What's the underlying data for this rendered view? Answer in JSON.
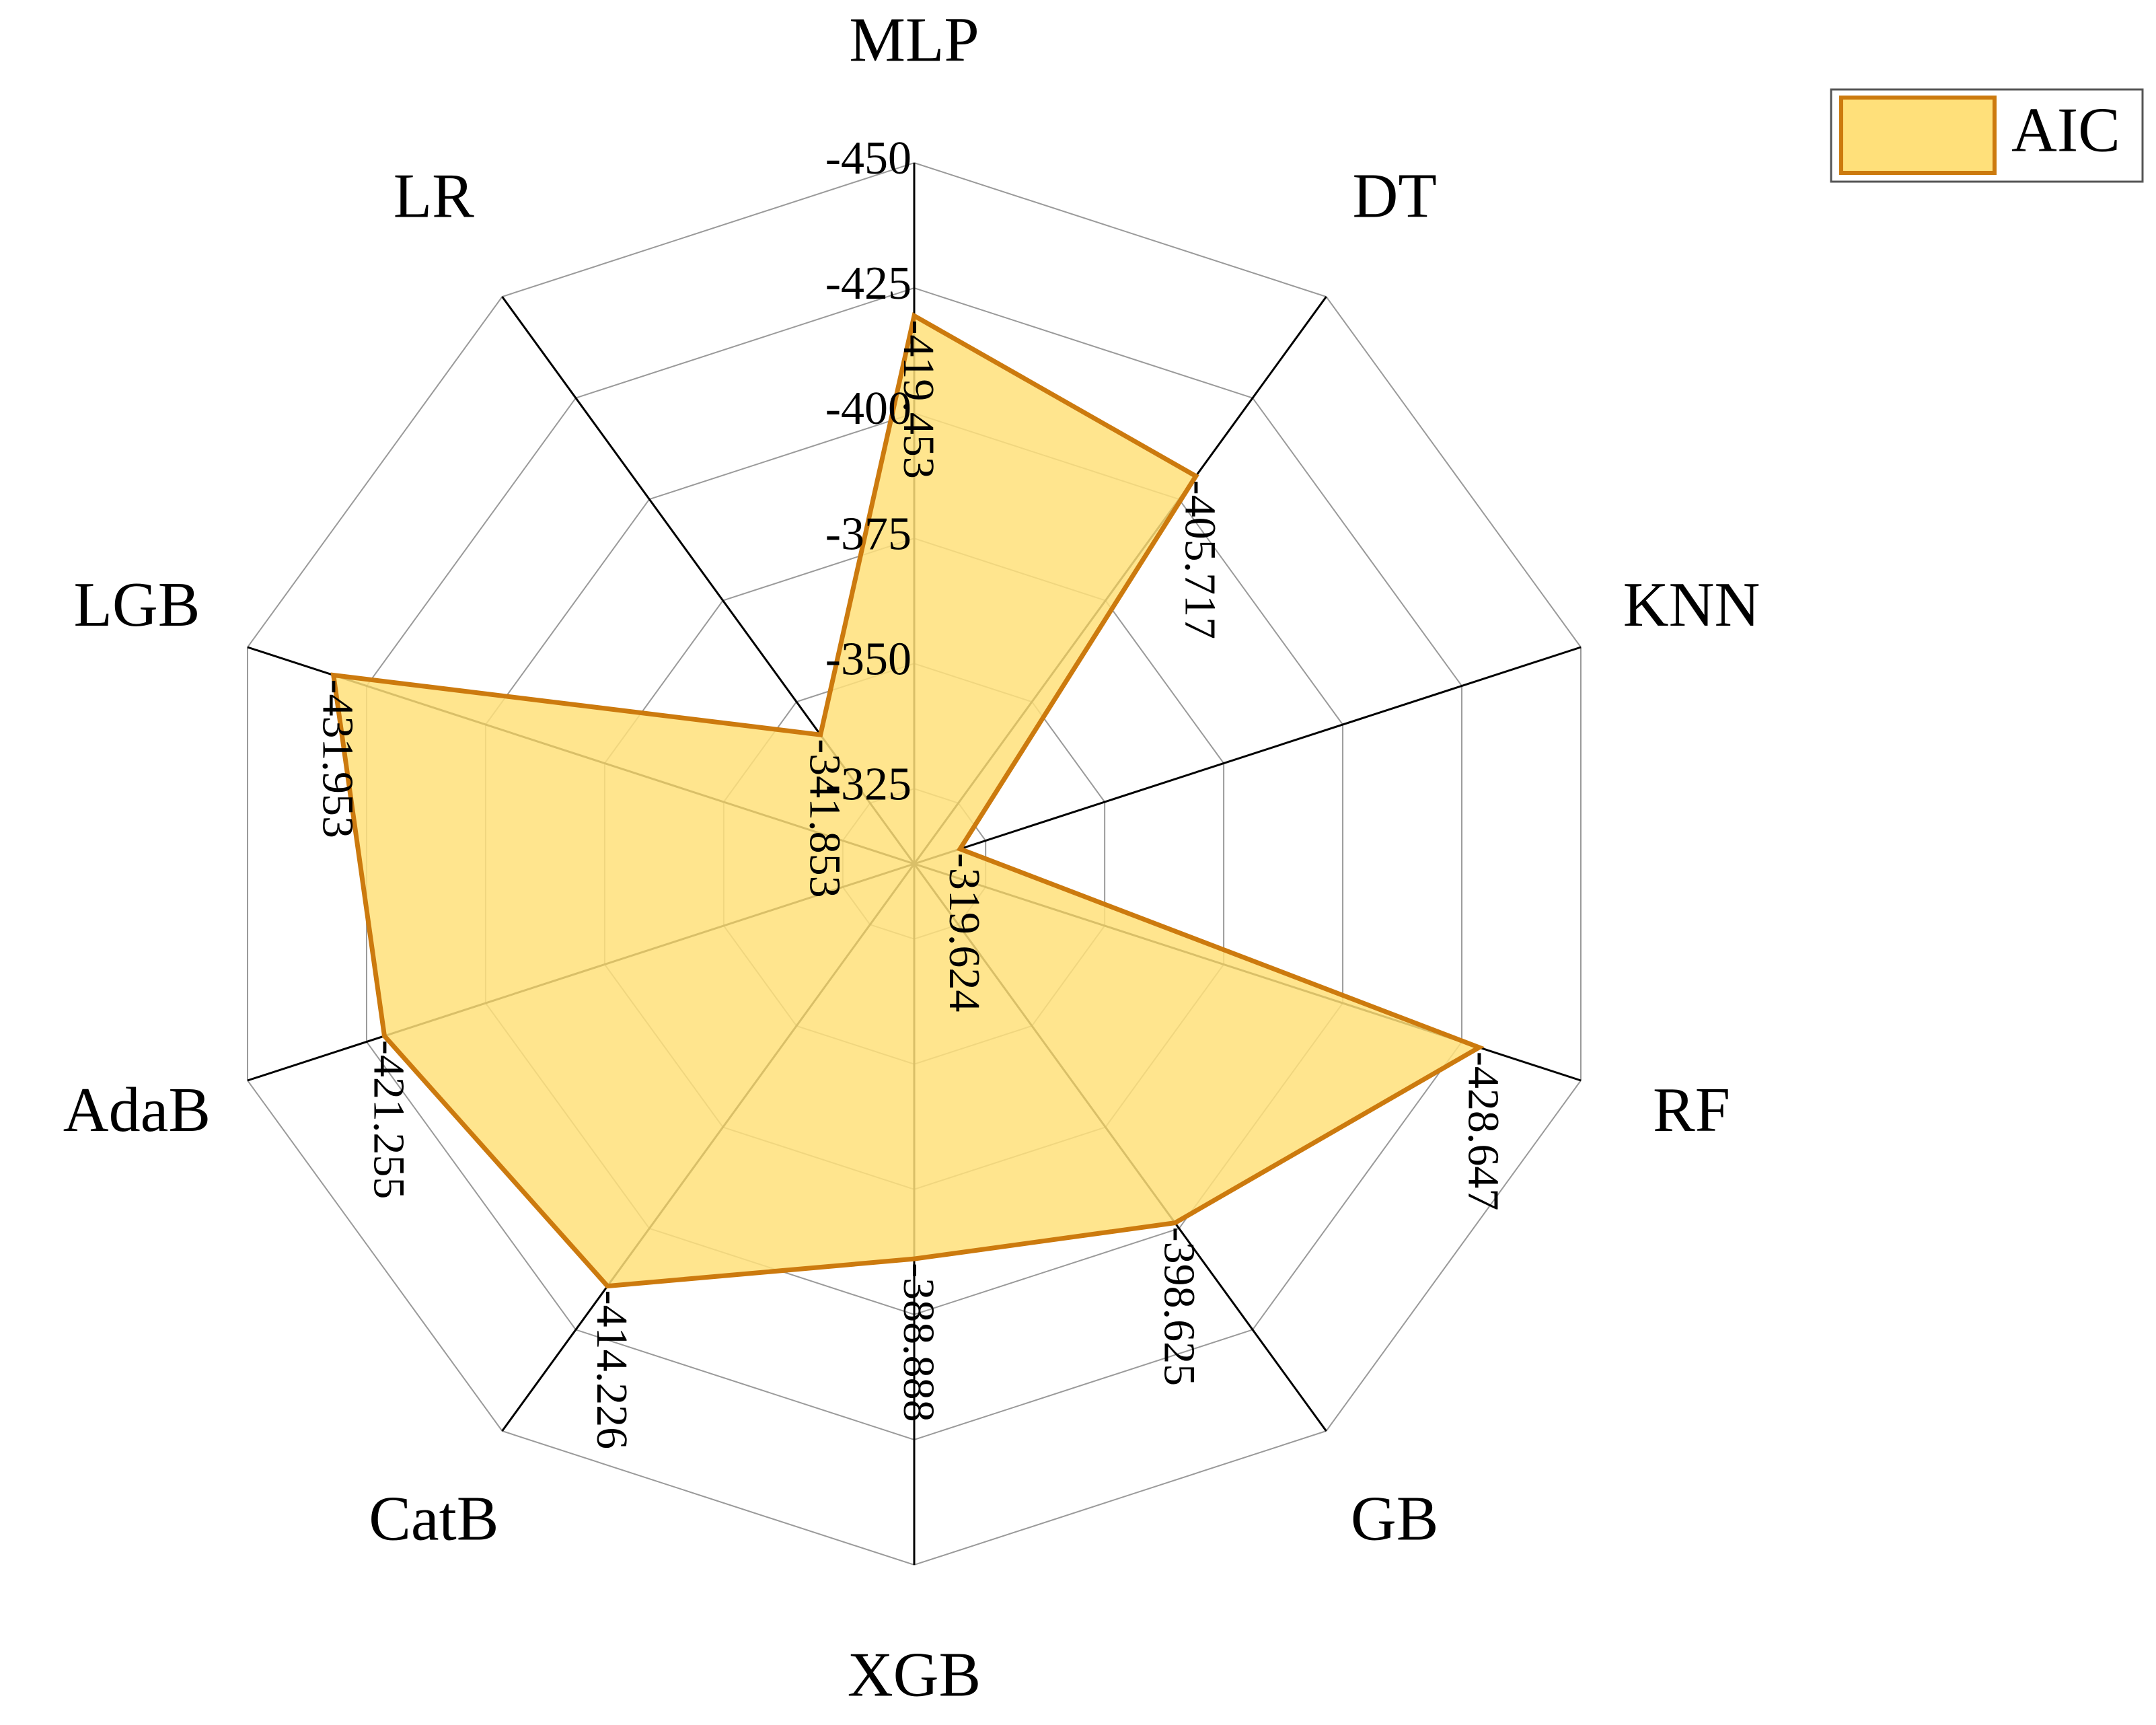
{
  "chart_data": {
    "type": "radar",
    "categories": [
      "MLP",
      "DT",
      "KNN",
      "RF",
      "GB",
      "XGB",
      "CatB",
      "AdaB",
      "LGB",
      "LR"
    ],
    "series": [
      {
        "name": "AIC",
        "color": "#cc7a0e",
        "fill": "#ffe07a",
        "values": [
          -419.453,
          -405.717,
          -319.624,
          -428.647,
          -398.625,
          -388.888,
          -414.226,
          -421.255,
          -431.953,
          -341.853
        ]
      }
    ],
    "rlim": [
      -310,
      -450
    ],
    "rticks": [
      -325,
      -350,
      -375,
      -400,
      -425,
      -450
    ],
    "grid": true,
    "legend": "top-right"
  }
}
